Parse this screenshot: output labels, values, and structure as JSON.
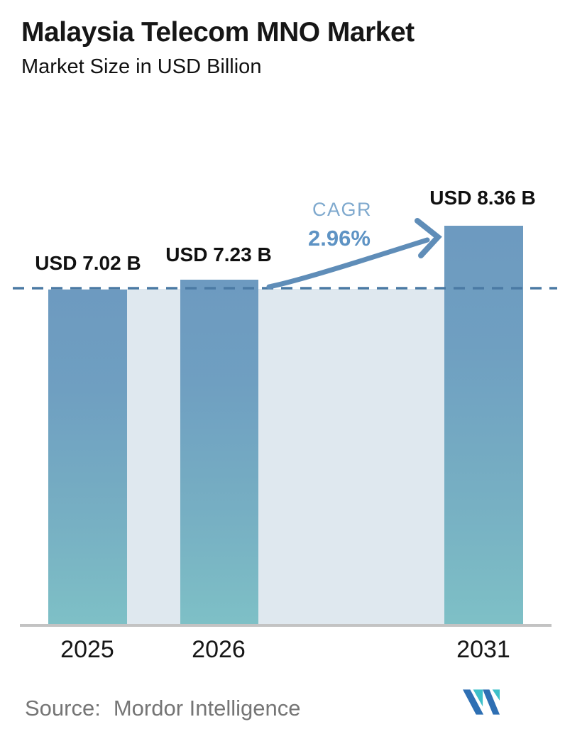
{
  "header": {
    "title": "Malaysia Telecom MNO Market",
    "subtitle": "Market Size in USD Billion"
  },
  "chart_data": {
    "type": "bar",
    "title": "Malaysia Telecom MNO Market",
    "subtitle": "Market Size in USD Billion",
    "categories": [
      "2025",
      "2026",
      "2031"
    ],
    "values": [
      7.02,
      7.23,
      8.36
    ],
    "value_labels": [
      "USD 7.02 B",
      "USD 7.23 B",
      "USD 8.36 B"
    ],
    "unit": "USD Billion",
    "ylim": [
      0,
      9
    ],
    "grid": false,
    "legend_position": "none",
    "reference_line_value": 7.02,
    "reference_line_style": "dashed",
    "annotations": {
      "cagr_label": "CAGR",
      "cagr_value": "2.96%",
      "arrow": "from 2026 bar to 2031 bar"
    }
  },
  "footer": {
    "source_prefix": "Source:",
    "source_name": "Mordor Intelligence",
    "logo": "mordor-intelligence-logo"
  },
  "colors": {
    "bar_gradient_top": "#6d9ac0",
    "bar_gradient_bottom": "#7ec0c6",
    "background_band": "#dfe8ef",
    "dashed_line": "#4b7aa4",
    "arrow": "#5f8db8",
    "cagr_label": "#7fa9ce",
    "cagr_value": "#5e93c4",
    "axis_line": "#c3c3c3",
    "text": "#161616",
    "source_text": "#757575",
    "logo_blue": "#2e6fb3",
    "logo_teal": "#3dc0c9"
  }
}
